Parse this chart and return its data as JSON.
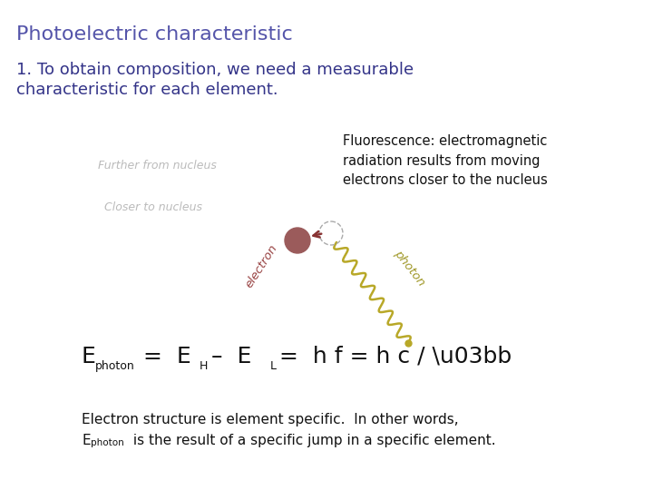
{
  "title": "Photoelectric characteristic",
  "title_color": "#5555aa",
  "subtitle_line1": "1. To obtain composition, we need a measurable",
  "subtitle_line2": "characteristic for each element.",
  "subtitle_color": "#333388",
  "fluorescence_text": "Fluorescence: electromagnetic\nradiation results from moving\nelectrons closer to the nucleus",
  "further_label": "Further from nucleus",
  "closer_label": "Closer to nucleus",
  "electron_label": "electron",
  "photon_label": "photon",
  "bottom_text1": "Electron structure is element specific.  In other words,",
  "bottom_text2": " is the result of a specific jump in a specific element.",
  "bg_color": "#ffffff",
  "arc_color": "#bbbbbb",
  "electron_color": "#9B5B5B",
  "photon_color": "#b8a828",
  "arrow_color": "#883333",
  "electron_label_color": "#994444",
  "photon_label_color": "#a09828"
}
